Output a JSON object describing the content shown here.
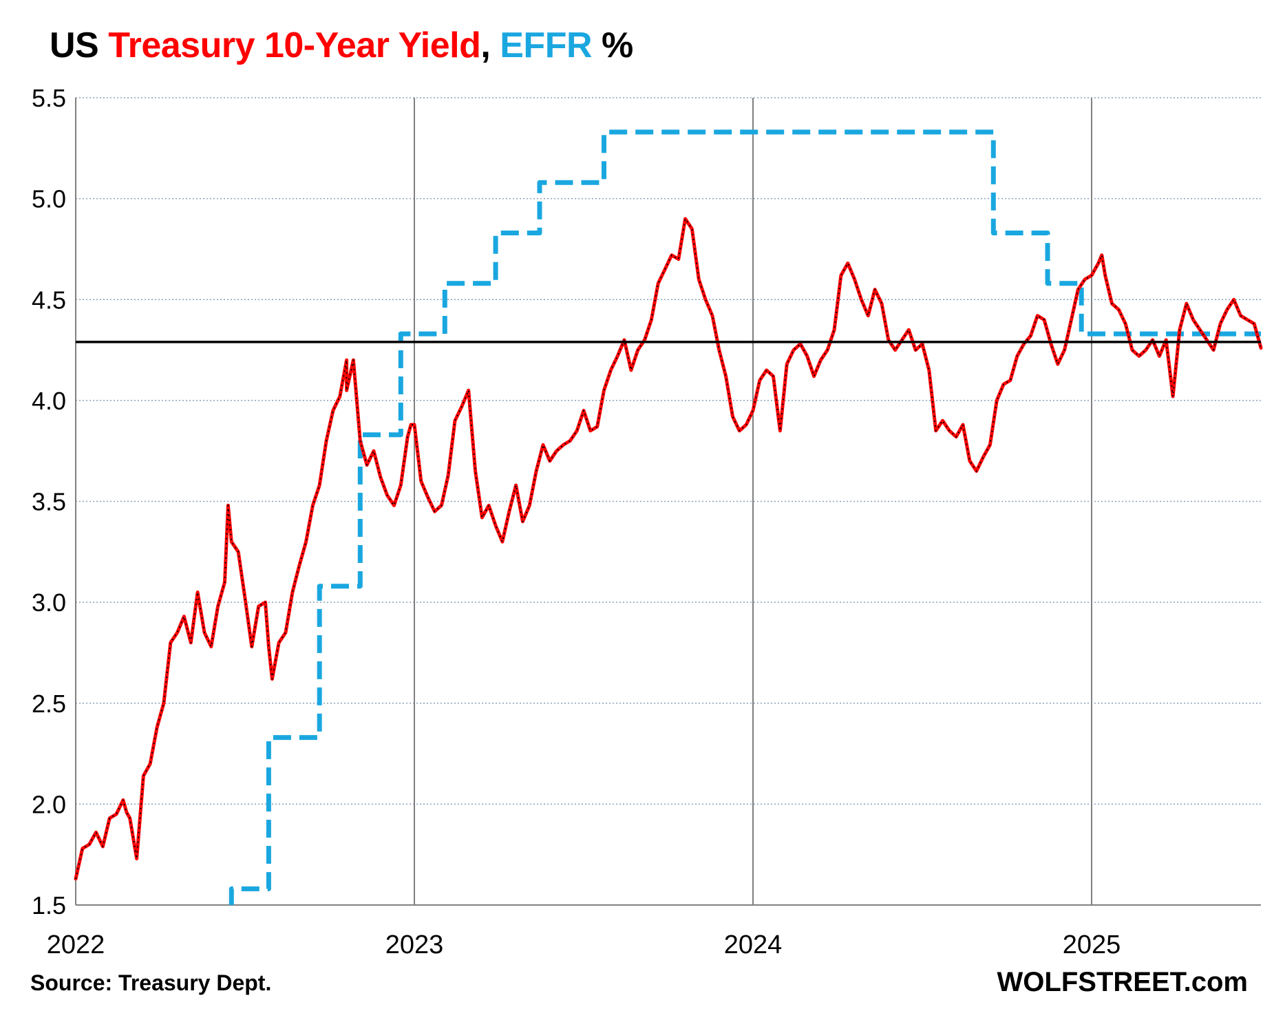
{
  "title": {
    "part1": "US ",
    "part2": "Treasury 10-Year Yield",
    "part3": ", ",
    "part4": "EFFR",
    "part5": " %"
  },
  "colors": {
    "treasury": "#ff0000",
    "effr": "#1aa7e0",
    "reference_line": "#000000",
    "grid_major": "#808080",
    "grid_minor": "#8aa0b8"
  },
  "source": "Source: Treasury Dept.",
  "brand": "WOLFSTREET.com",
  "chart_data": {
    "type": "line",
    "ylim": [
      1.5,
      5.5
    ],
    "xlim": [
      2022.0,
      2025.5
    ],
    "yticks": [
      "1.5",
      "2.0",
      "2.5",
      "3.0",
      "3.5",
      "4.0",
      "4.5",
      "5.0",
      "5.5"
    ],
    "xticks": [
      "2022",
      "2023",
      "2024",
      "2025"
    ],
    "grid": true,
    "reference_line": {
      "y": 4.29
    },
    "series": [
      {
        "name": "Treasury 10-Year Yield",
        "style": "solid",
        "x": [
          2022.0,
          2022.02,
          2022.04,
          2022.06,
          2022.08,
          2022.1,
          2022.12,
          2022.14,
          2022.15,
          2022.16,
          2022.18,
          2022.2,
          2022.22,
          2022.24,
          2022.26,
          2022.28,
          2022.3,
          2022.32,
          2022.34,
          2022.36,
          2022.38,
          2022.4,
          2022.42,
          2022.44,
          2022.45,
          2022.46,
          2022.48,
          2022.5,
          2022.52,
          2022.54,
          2022.56,
          2022.57,
          2022.58,
          2022.6,
          2022.62,
          2022.64,
          2022.66,
          2022.68,
          2022.7,
          2022.72,
          2022.74,
          2022.76,
          2022.78,
          2022.8,
          2022.8,
          2022.82,
          2022.84,
          2022.86,
          2022.88,
          2022.9,
          2022.92,
          2022.94,
          2022.96,
          2022.98,
          2022.99,
          2023.0,
          2023.02,
          2023.04,
          2023.06,
          2023.08,
          2023.1,
          2023.12,
          2023.14,
          2023.16,
          2023.18,
          2023.2,
          2023.22,
          2023.24,
          2023.26,
          2023.28,
          2023.3,
          2023.32,
          2023.34,
          2023.36,
          2023.38,
          2023.4,
          2023.42,
          2023.44,
          2023.46,
          2023.48,
          2023.5,
          2023.52,
          2023.54,
          2023.56,
          2023.58,
          2023.6,
          2023.62,
          2023.64,
          2023.66,
          2023.68,
          2023.7,
          2023.72,
          2023.74,
          2023.76,
          2023.78,
          2023.8,
          2023.82,
          2023.84,
          2023.86,
          2023.88,
          2023.9,
          2023.92,
          2023.94,
          2023.96,
          2023.98,
          2024.0,
          2024.02,
          2024.04,
          2024.06,
          2024.08,
          2024.1,
          2024.12,
          2024.14,
          2024.16,
          2024.18,
          2024.2,
          2024.22,
          2024.24,
          2024.26,
          2024.28,
          2024.3,
          2024.32,
          2024.34,
          2024.36,
          2024.38,
          2024.4,
          2024.42,
          2024.44,
          2024.46,
          2024.48,
          2024.5,
          2024.52,
          2024.54,
          2024.56,
          2024.58,
          2024.6,
          2024.62,
          2024.64,
          2024.66,
          2024.68,
          2024.7,
          2024.72,
          2024.74,
          2024.76,
          2024.78,
          2024.8,
          2024.82,
          2024.84,
          2024.86,
          2024.88,
          2024.9,
          2024.92,
          2024.94,
          2024.96,
          2024.98,
          2025.0,
          2025.02,
          2025.03,
          2025.04,
          2025.06,
          2025.08,
          2025.1,
          2025.12,
          2025.14,
          2025.16,
          2025.18,
          2025.2,
          2025.22,
          2025.24,
          2025.26,
          2025.28,
          2025.3,
          2025.32,
          2025.34,
          2025.36,
          2025.38,
          2025.4,
          2025.42,
          2025.44,
          2025.46,
          2025.48,
          2025.5
        ],
        "values": [
          1.63,
          1.78,
          1.8,
          1.86,
          1.79,
          1.93,
          1.95,
          2.02,
          1.96,
          1.93,
          1.73,
          2.14,
          2.2,
          2.38,
          2.5,
          2.8,
          2.85,
          2.93,
          2.8,
          3.05,
          2.85,
          2.78,
          2.98,
          3.1,
          3.48,
          3.3,
          3.25,
          3.02,
          2.78,
          2.98,
          3.0,
          2.78,
          2.62,
          2.8,
          2.85,
          3.05,
          3.18,
          3.3,
          3.48,
          3.58,
          3.8,
          3.95,
          4.02,
          4.2,
          4.05,
          4.2,
          3.8,
          3.68,
          3.75,
          3.62,
          3.53,
          3.48,
          3.58,
          3.82,
          3.88,
          3.88,
          3.6,
          3.52,
          3.45,
          3.48,
          3.63,
          3.9,
          3.97,
          4.05,
          3.65,
          3.42,
          3.48,
          3.38,
          3.3,
          3.45,
          3.58,
          3.4,
          3.48,
          3.65,
          3.78,
          3.7,
          3.75,
          3.78,
          3.8,
          3.85,
          3.95,
          3.85,
          3.87,
          4.05,
          4.15,
          4.22,
          4.3,
          4.15,
          4.25,
          4.3,
          4.4,
          4.58,
          4.65,
          4.72,
          4.7,
          4.9,
          4.85,
          4.6,
          4.5,
          4.42,
          4.25,
          4.12,
          3.92,
          3.85,
          3.88,
          3.95,
          4.1,
          4.15,
          4.12,
          3.85,
          4.18,
          4.25,
          4.28,
          4.22,
          4.12,
          4.2,
          4.25,
          4.35,
          4.62,
          4.68,
          4.6,
          4.5,
          4.42,
          4.55,
          4.48,
          4.3,
          4.25,
          4.3,
          4.35,
          4.25,
          4.28,
          4.15,
          3.85,
          3.9,
          3.85,
          3.82,
          3.88,
          3.7,
          3.65,
          3.72,
          3.78,
          4.0,
          4.08,
          4.1,
          4.22,
          4.28,
          4.32,
          4.42,
          4.4,
          4.28,
          4.18,
          4.25,
          4.4,
          4.55,
          4.6,
          4.62,
          4.68,
          4.72,
          4.62,
          4.48,
          4.45,
          4.38,
          4.25,
          4.22,
          4.25,
          4.3,
          4.22,
          4.3,
          4.02,
          4.35,
          4.48,
          4.4,
          4.35,
          4.3,
          4.25,
          4.38,
          4.45,
          4.5,
          4.42,
          4.4,
          4.38,
          4.26
        ]
      },
      {
        "name": "EFFR",
        "style": "dashed",
        "steps": [
          [
            2022.0,
            0.08
          ],
          [
            2022.46,
            1.58
          ],
          [
            2022.57,
            2.33
          ],
          [
            2022.72,
            3.08
          ],
          [
            2022.84,
            3.83
          ],
          [
            2022.96,
            4.33
          ],
          [
            2023.09,
            4.58
          ],
          [
            2023.24,
            4.83
          ],
          [
            2023.37,
            5.08
          ],
          [
            2023.56,
            5.33
          ],
          [
            2024.71,
            4.83
          ],
          [
            2024.87,
            4.58
          ],
          [
            2024.97,
            4.33
          ],
          [
            2025.5,
            4.33
          ]
        ]
      }
    ]
  }
}
